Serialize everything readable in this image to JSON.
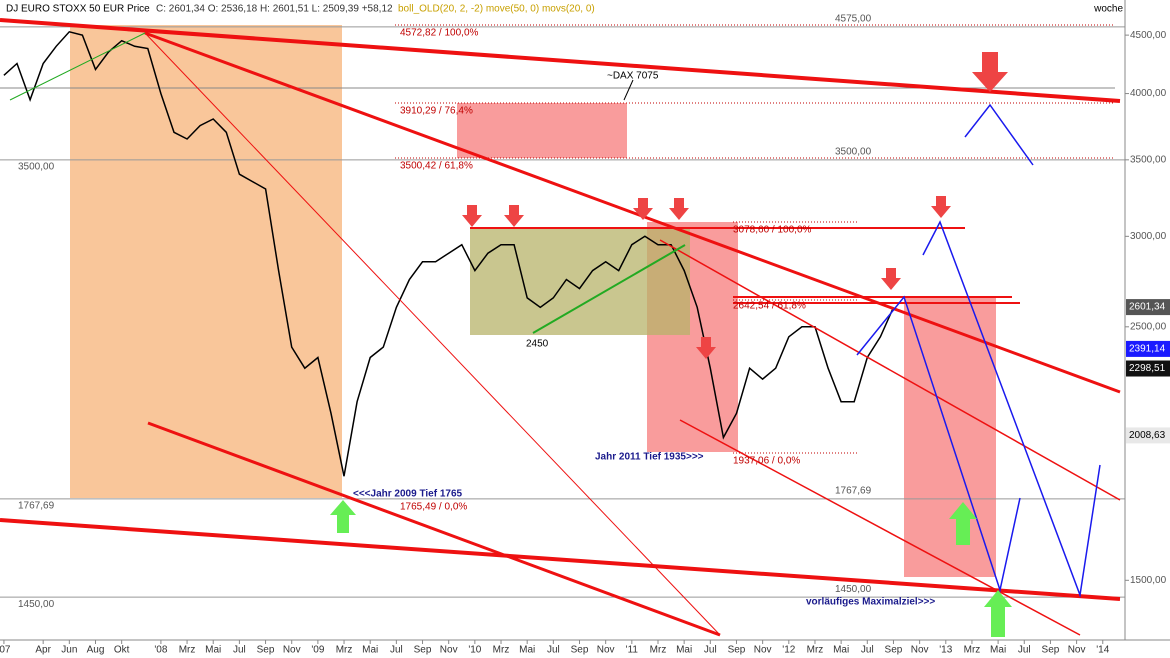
{
  "chart_data": {
    "type": "line",
    "title": "DJ EURO STOXX 50 EUR Price",
    "ohlc": "C: 2601,34 O: 2536,18 H: 2601,51 L: 2509,39 +58,12",
    "indicators": "boll_OLD(20, 2, -2) move(50, 0) movs(20, 0)",
    "period": "woche",
    "log_scale": true,
    "grid": false,
    "xlim": [
      -0.3,
      85.7
    ],
    "ylim": [
      1330,
      4830
    ],
    "xticks": [
      {
        "value": 0,
        "label": "'07"
      },
      {
        "value": 3,
        "label": "Apr"
      },
      {
        "value": 5,
        "label": "Jun"
      },
      {
        "value": 7,
        "label": "Aug"
      },
      {
        "value": 9,
        "label": "Okt"
      },
      {
        "value": 12,
        "label": "'08"
      },
      {
        "value": 14,
        "label": "Mrz"
      },
      {
        "value": 16,
        "label": "Mai"
      },
      {
        "value": 18,
        "label": "Jul"
      },
      {
        "value": 20,
        "label": "Sep"
      },
      {
        "value": 22,
        "label": "Nov"
      },
      {
        "value": 24,
        "label": "'09"
      },
      {
        "value": 26,
        "label": "Mrz"
      },
      {
        "value": 28,
        "label": "Mai"
      },
      {
        "value": 30,
        "label": "Jul"
      },
      {
        "value": 32,
        "label": "Sep"
      },
      {
        "value": 34,
        "label": "Nov"
      },
      {
        "value": 36,
        "label": "'10"
      },
      {
        "value": 38,
        "label": "Mrz"
      },
      {
        "value": 40,
        "label": "Mai"
      },
      {
        "value": 42,
        "label": "Jul"
      },
      {
        "value": 44,
        "label": "Sep"
      },
      {
        "value": 46,
        "label": "Nov"
      },
      {
        "value": 48,
        "label": "'11"
      },
      {
        "value": 50,
        "label": "Mrz"
      },
      {
        "value": 52,
        "label": "Mai"
      },
      {
        "value": 54,
        "label": "Jul"
      },
      {
        "value": 56,
        "label": "Sep"
      },
      {
        "value": 58,
        "label": "Nov"
      },
      {
        "value": 60,
        "label": "'12"
      },
      {
        "value": 62,
        "label": "Mrz"
      },
      {
        "value": 64,
        "label": "Mai"
      },
      {
        "value": 66,
        "label": "Jul"
      },
      {
        "value": 68,
        "label": "Sep"
      },
      {
        "value": 70,
        "label": "Nov"
      },
      {
        "value": 72,
        "label": "'13"
      },
      {
        "value": 74,
        "label": "Mrz"
      },
      {
        "value": 76,
        "label": "Mai"
      },
      {
        "value": 78,
        "label": "Jul"
      },
      {
        "value": 80,
        "label": "Sep"
      },
      {
        "value": 82,
        "label": "Nov"
      },
      {
        "value": 84,
        "label": "'14"
      }
    ],
    "yticks": [
      {
        "value": 1500,
        "label": "1500,00"
      },
      {
        "value": 2500,
        "label": "2500,00"
      },
      {
        "value": 3000,
        "label": "3000,00"
      },
      {
        "value": 3500,
        "label": "3500,00"
      },
      {
        "value": 4000,
        "label": "4000,00"
      },
      {
        "value": 4500,
        "label": "4500,00"
      }
    ],
    "series": [
      {
        "name": "DJ EURO STOXX 50",
        "color": "#000000",
        "x": [
          0,
          1,
          2,
          3,
          4,
          5,
          6,
          7,
          8,
          9,
          10,
          11,
          12,
          13,
          14,
          15,
          16,
          17,
          18,
          19,
          20,
          21,
          22,
          23,
          24,
          25,
          26,
          27,
          28,
          29,
          30,
          31,
          32,
          33,
          34,
          35,
          36,
          37,
          38,
          39,
          40,
          41,
          42,
          43,
          44,
          45,
          46,
          47,
          48,
          49,
          50,
          51,
          52,
          53,
          54,
          55,
          56,
          57,
          58,
          59,
          60,
          61,
          62,
          63,
          64,
          65,
          66,
          67,
          68
        ],
        "values": [
          4150,
          4250,
          3950,
          4250,
          4400,
          4530,
          4500,
          4200,
          4350,
          4450,
          4400,
          4380,
          4000,
          3700,
          3650,
          3750,
          3800,
          3700,
          3400,
          3350,
          3300,
          2800,
          2400,
          2300,
          2350,
          2100,
          1850,
          2150,
          2350,
          2400,
          2600,
          2750,
          2850,
          2850,
          2900,
          2950,
          2800,
          2900,
          2950,
          2950,
          2650,
          2600,
          2650,
          2750,
          2700,
          2800,
          2850,
          2800,
          2950,
          3000,
          2950,
          2950,
          2800,
          2600,
          2300,
          2000,
          2100,
          2300,
          2250,
          2300,
          2450,
          2500,
          2500,
          2300,
          2150,
          2150,
          2350,
          2450,
          2600
        ]
      }
    ],
    "levels": [
      {
        "value": 4575,
        "label": "4575,00"
      },
      {
        "value": 3500,
        "label": "3500,00"
      },
      {
        "value": 1767.69,
        "label": "1767,69"
      },
      {
        "value": 1450,
        "label": "1450,00"
      }
    ],
    "price_tags": [
      {
        "value": 2601.34,
        "label": "2601,34",
        "color": "#555555"
      },
      {
        "value": 2391.14,
        "label": "2391,14",
        "color": "#1a1aff"
      },
      {
        "value": 2298.51,
        "label": "2298,51",
        "color": "#111111"
      },
      {
        "value": 2008.63,
        "label": "2008,63",
        "color": "#e8e8e8"
      }
    ],
    "annotations": [
      "4572,82 / 100,0%",
      "3910,29 / 76,4%",
      "3500,42 / 61,8%",
      "3078,60 / 100,0%",
      "2642,54 / 61,8%",
      "1937,06 / 0,0%",
      "1765,49 / 0,0%",
      "~DAX 7075",
      "2450",
      "Jahr 2011 Tief 1935>>>",
      "<<<Jahr 2009 Tief 1765",
      "vorläufiges Maximalziel>>>"
    ]
  }
}
